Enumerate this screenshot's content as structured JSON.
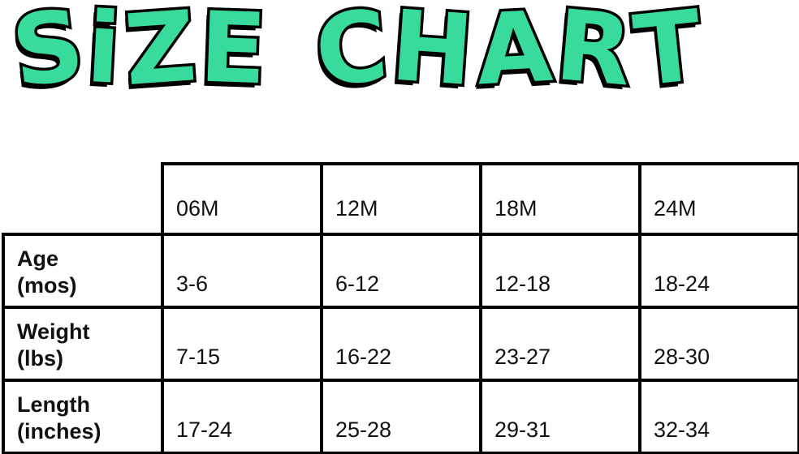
{
  "page": {
    "background": "#ffffff"
  },
  "title": {
    "text": "SiZE CHART",
    "fill_color": "#39db9c",
    "outline_color": "#000000"
  },
  "chart_data": {
    "type": "table",
    "title": "SIZE CHART",
    "columns": [
      "",
      "06M",
      "12M",
      "18M",
      "24M"
    ],
    "rows": [
      {
        "label": "Age (mos)",
        "values": [
          "3-6",
          "6-12",
          "12-18",
          "18-24"
        ]
      },
      {
        "label": "Weight (lbs)",
        "values": [
          "7-15",
          "16-22",
          "23-27",
          "28-30"
        ]
      },
      {
        "label": "Length (inches)",
        "values": [
          "17-24",
          "25-28",
          "29-31",
          "32-34"
        ]
      }
    ]
  },
  "table": {
    "border_color": "#000000",
    "text_color": "#111111",
    "headers": [
      "06M",
      "12M",
      "18M",
      "24M"
    ],
    "rows": [
      {
        "label_line1": "Age",
        "label_line2": "(mos)",
        "values": [
          "3-6",
          "6-12",
          "12-18",
          "18-24"
        ]
      },
      {
        "label_line1": "Weight",
        "label_line2": "(lbs)",
        "values": [
          "7-15",
          "16-22",
          "23-27",
          "28-30"
        ]
      },
      {
        "label_line1": "Length",
        "label_line2": "(inches)",
        "values": [
          "17-24",
          "25-28",
          "29-31",
          "32-34"
        ]
      }
    ]
  }
}
